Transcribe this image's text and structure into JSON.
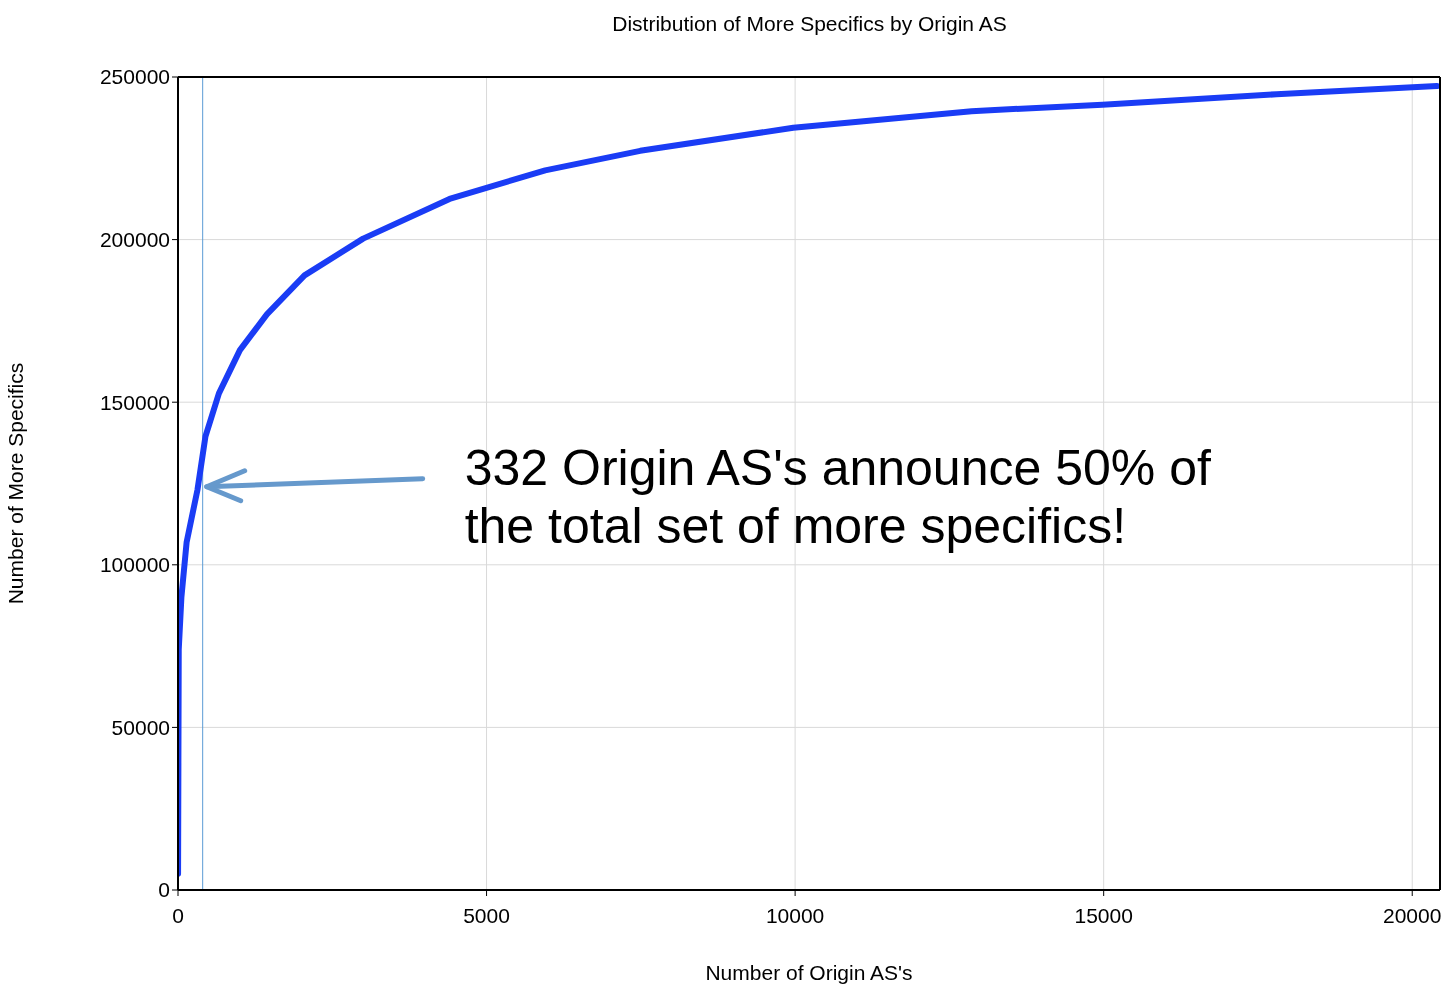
{
  "chart_data": {
    "type": "line",
    "title": "Distribution of More Specifics by Origin AS",
    "xlabel": "Number of Origin AS's",
    "ylabel": "Number of More Specifics",
    "x": [
      1,
      12,
      55,
      140,
      315,
      445,
      663,
      1003,
      1440,
      2050,
      3000,
      4400,
      5950,
      7490,
      9970,
      12860,
      14980,
      17800,
      20400
    ],
    "series": [
      {
        "color": "#1a3cf5",
        "values": [
          5000,
          74000,
          90000,
          107000,
          123000,
          139500,
          152700,
          166000,
          177000,
          189000,
          200300,
          212500,
          221300,
          227300,
          234400,
          239500,
          241500,
          244700,
          247200
        ]
      }
    ],
    "xlim": [
      0,
      20450
    ],
    "xticks": [
      0,
      5000,
      10000,
      15000,
      20000
    ],
    "ylim": [
      0,
      250000
    ],
    "yticks": [
      0,
      50000,
      100000,
      150000,
      200000,
      250000
    ],
    "grid": true,
    "marker": "none",
    "line_style": "solid",
    "ref_lines": [
      {
        "axis": "x",
        "value": 400,
        "color": "#5b9bd5"
      }
    ],
    "annotations": [
      {
        "text": "332 Origin AS's announce 50% of the total set of more specifics!",
        "x": 400,
        "y": 124000
      }
    ]
  }
}
